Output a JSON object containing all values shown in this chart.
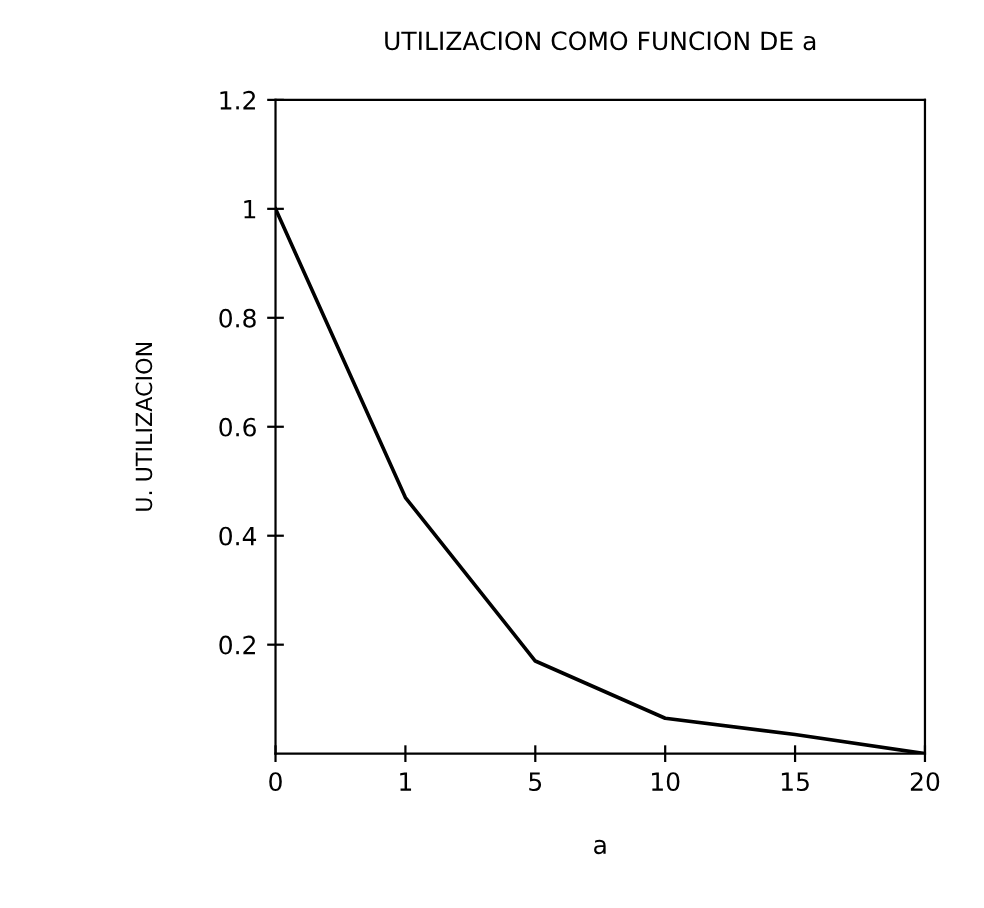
{
  "chart_data": {
    "type": "line",
    "title": "UTILIZACION COMO FUNCION DE a",
    "xlabel": "a",
    "ylabel": "U. UTILIZACION",
    "categories": [
      "0",
      "1",
      "5",
      "10",
      "15",
      "20"
    ],
    "values": [
      1.0,
      0.47,
      0.17,
      0.065,
      0.035,
      0.0
    ],
    "color": "#000000",
    "ylim": [
      0,
      1.2
    ],
    "yticks": [
      0.2,
      0.4,
      0.6,
      0.8,
      1,
      1.2
    ],
    "grid": false,
    "marker": "none",
    "line_style": "solid"
  }
}
